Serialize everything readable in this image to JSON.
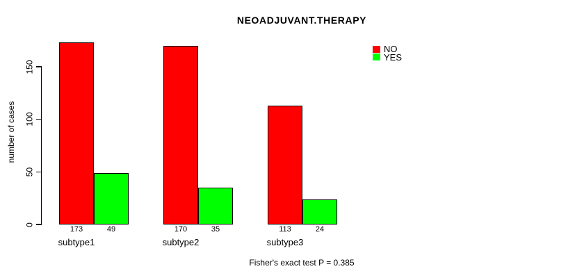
{
  "chart_data": {
    "type": "bar",
    "title": "NEOADJUVANT.THERAPY",
    "categories": [
      "subtype1",
      "subtype2",
      "subtype3"
    ],
    "series": [
      {
        "name": "NO",
        "color": "#ff0000",
        "values": [
          173,
          170,
          113
        ]
      },
      {
        "name": "YES",
        "color": "#00ff00",
        "values": [
          49,
          35,
          24
        ]
      }
    ],
    "xlabel": "",
    "ylabel": "number of cases",
    "ylim": [
      0,
      175
    ],
    "yticks": [
      0,
      50,
      100,
      150
    ],
    "grid": false,
    "legend_position": "top-right",
    "values_shown_under_bars": true,
    "annotation": "Fisher's exact test P = 0.385"
  }
}
